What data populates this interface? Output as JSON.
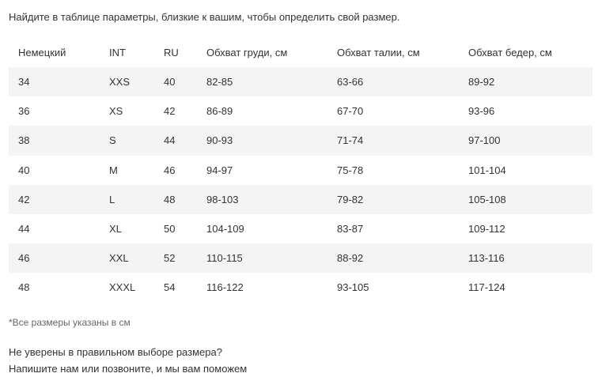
{
  "intro": "Найдите в таблице параметры, близкие к вашим, чтобы определить свой размер.",
  "table": {
    "headers": [
      "Немецкий",
      "INT",
      "RU",
      "Обхват груди, см",
      "Обхват талии, см",
      "Обхват бедер, см"
    ],
    "rows": [
      [
        "34",
        "XXS",
        "40",
        "82-85",
        "63-66",
        "89-92"
      ],
      [
        "36",
        "XS",
        "42",
        "86-89",
        "67-70",
        "93-96"
      ],
      [
        "38",
        "S",
        "44",
        "90-93",
        "71-74",
        "97-100"
      ],
      [
        "40",
        "M",
        "46",
        "94-97",
        "75-78",
        "101-104"
      ],
      [
        "42",
        "L",
        "48",
        "98-103",
        "79-82",
        "105-108"
      ],
      [
        "44",
        "XL",
        "50",
        "104-109",
        "83-87",
        "109-112"
      ],
      [
        "46",
        "XXL",
        "52",
        "110-115",
        "88-92",
        "113-116"
      ],
      [
        "48",
        "XXXL",
        "54",
        "116-122",
        "93-105",
        "117-124"
      ]
    ]
  },
  "note": "*Все размеры указаны в см",
  "help": {
    "line1": "Не уверены в правильном выборе размера?",
    "line2": "Напишите нам или позвоните, и мы вам поможем"
  },
  "colors": {
    "text": "#333333",
    "muted_text": "#666666",
    "row_shade": "#f4f4f4"
  }
}
